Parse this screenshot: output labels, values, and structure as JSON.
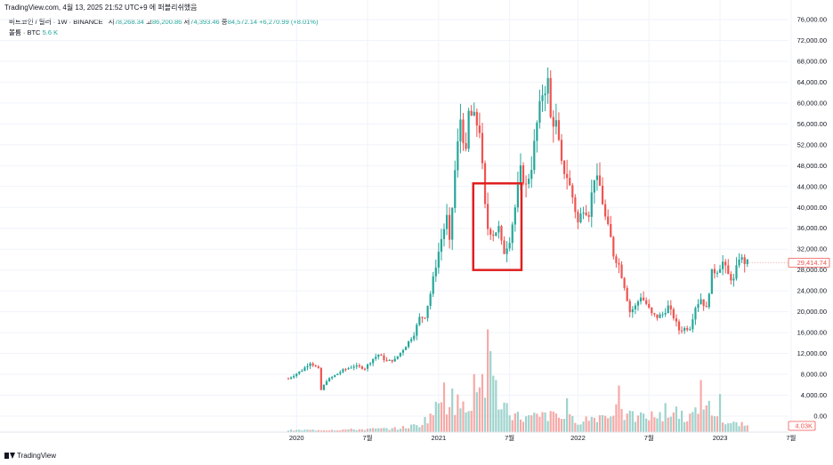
{
  "header": {
    "publish_text": "TradingView.com, 4월 13, 2025 21:52 UTC+9 에 퍼블리쉬했음"
  },
  "legend": {
    "symbol": "비트코인 / 달러 · 1W · BINANCE",
    "open_label": "시",
    "open_value": "78,268.34",
    "high_label": "고",
    "high_value": "86,200.86",
    "low_label": "저",
    "low_value": "74,393.46",
    "close_label": "종",
    "close_value": "84,572.14",
    "change": "+6,270.99 (+8.01%)",
    "volume_label": "볼륨 · BTC",
    "volume_value": "5.6 K"
  },
  "footer": {
    "brand": "TradingView"
  },
  "colors": {
    "up": "#26a69a",
    "down": "#ef5350",
    "vol_up": "#9ed3cd",
    "vol_down": "#f7a9a7",
    "highlight_box": "#e02020",
    "grid": "#f0f3fa"
  },
  "chart_data": {
    "type": "candlestick",
    "interval": "1W",
    "y_axis_ticks": [
      "76,000.00",
      "72,000.00",
      "68,000.00",
      "64,000.00",
      "60,000.00",
      "56,000.00",
      "52,000.00",
      "48,000.00",
      "44,000.00",
      "40,000.00",
      "36,000.00",
      "32,000.00",
      "28,000.00",
      "24,000.00",
      "20,000.00",
      "16,000.00",
      "12,000.00",
      "8,000.00",
      "4,000.00",
      "0.00"
    ],
    "y_axis_values": [
      76000,
      72000,
      68000,
      64000,
      60000,
      56000,
      52000,
      48000,
      44000,
      40000,
      36000,
      32000,
      28000,
      24000,
      20000,
      16000,
      12000,
      8000,
      4000,
      0
    ],
    "x_axis_labels": [
      "2020",
      "7월",
      "2021",
      "7월",
      "2022",
      "7월",
      "2023",
      "7월"
    ],
    "x_axis_weeks": [
      3,
      29,
      55,
      81,
      106,
      132,
      158,
      184
    ],
    "price_last_label": "29,414.74",
    "price_last": 29414.74,
    "volume_last_label": "4.03K",
    "price_range": [
      0,
      77000
    ],
    "weeks": 187,
    "highlight": {
      "from_week": 68,
      "to_week": 85,
      "low": 28000,
      "high": 44600
    },
    "anchors": [
      [
        0,
        7200
      ],
      [
        5,
        8800
      ],
      [
        8,
        10300
      ],
      [
        11,
        9000
      ],
      [
        12,
        5000
      ],
      [
        14,
        6800
      ],
      [
        17,
        7800
      ],
      [
        20,
        8800
      ],
      [
        24,
        9600
      ],
      [
        28,
        9200
      ],
      [
        31,
        11000
      ],
      [
        33,
        11800
      ],
      [
        36,
        10500
      ],
      [
        39,
        10800
      ],
      [
        43,
        13500
      ],
      [
        46,
        15800
      ],
      [
        48,
        18800
      ],
      [
        50,
        19200
      ],
      [
        52,
        23500
      ],
      [
        54,
        29000
      ],
      [
        56,
        34000
      ],
      [
        58,
        38000
      ],
      [
        59,
        33000
      ],
      [
        61,
        47000
      ],
      [
        63,
        57000
      ],
      [
        65,
        50000
      ],
      [
        66,
        58000
      ],
      [
        68,
        57000
      ],
      [
        70,
        55000
      ],
      [
        72,
        40000
      ],
      [
        73,
        36000
      ],
      [
        75,
        35000
      ],
      [
        77,
        36000
      ],
      [
        78,
        33000
      ],
      [
        79,
        31500
      ],
      [
        81,
        34000
      ],
      [
        83,
        40000
      ],
      [
        85,
        47000
      ],
      [
        87,
        44000
      ],
      [
        89,
        48000
      ],
      [
        91,
        56000
      ],
      [
        93,
        62000
      ],
      [
        95,
        64000
      ],
      [
        96,
        57000
      ],
      [
        98,
        56000
      ],
      [
        100,
        48000
      ],
      [
        102,
        46000
      ],
      [
        104,
        42000
      ],
      [
        106,
        37000
      ],
      [
        108,
        40000
      ],
      [
        110,
        39000
      ],
      [
        112,
        46000
      ],
      [
        114,
        44000
      ],
      [
        116,
        38000
      ],
      [
        118,
        34000
      ],
      [
        119,
        31000
      ],
      [
        121,
        29000
      ],
      [
        123,
        25000
      ],
      [
        125,
        20000
      ],
      [
        127,
        21000
      ],
      [
        129,
        23000
      ],
      [
        131,
        21500
      ],
      [
        133,
        19500
      ],
      [
        135,
        19000
      ],
      [
        137,
        19500
      ],
      [
        139,
        21000
      ],
      [
        141,
        19000
      ],
      [
        143,
        16500
      ],
      [
        145,
        16800
      ],
      [
        147,
        17000
      ],
      [
        149,
        21000
      ],
      [
        151,
        22500
      ],
      [
        153,
        20500
      ],
      [
        155,
        27500
      ],
      [
        157,
        28000
      ],
      [
        159,
        29500
      ],
      [
        161,
        27000
      ],
      [
        163,
        26000
      ],
      [
        165,
        30500
      ],
      [
        167,
        29500
      ],
      [
        168,
        29414.74
      ]
    ],
    "volume_anchors": [
      [
        0,
        300
      ],
      [
        20,
        400
      ],
      [
        40,
        600
      ],
      [
        48,
        1200
      ],
      [
        50,
        2000
      ],
      [
        52,
        2800
      ],
      [
        54,
        3800
      ],
      [
        56,
        5600
      ],
      [
        58,
        4200
      ],
      [
        60,
        4800
      ],
      [
        62,
        4600
      ],
      [
        64,
        3900
      ],
      [
        66,
        5200
      ],
      [
        68,
        5600
      ],
      [
        70,
        6800
      ],
      [
        72,
        7600
      ],
      [
        74,
        9000
      ],
      [
        76,
        6400
      ],
      [
        78,
        4600
      ],
      [
        80,
        4200
      ],
      [
        82,
        3200
      ],
      [
        84,
        2600
      ],
      [
        86,
        2400
      ],
      [
        88,
        2300
      ],
      [
        90,
        2500
      ],
      [
        92,
        2400
      ],
      [
        94,
        2800
      ],
      [
        96,
        2600
      ],
      [
        98,
        2800
      ],
      [
        100,
        2200
      ],
      [
        102,
        2300
      ],
      [
        104,
        2100
      ],
      [
        106,
        2000
      ],
      [
        108,
        2100
      ],
      [
        110,
        2200
      ],
      [
        112,
        2400
      ],
      [
        114,
        2800
      ],
      [
        116,
        2600
      ],
      [
        118,
        3200
      ],
      [
        120,
        4400
      ],
      [
        122,
        2800
      ],
      [
        124,
        2600
      ],
      [
        126,
        2500
      ],
      [
        128,
        2400
      ],
      [
        130,
        2600
      ],
      [
        132,
        2500
      ],
      [
        134,
        2800
      ],
      [
        136,
        2500
      ],
      [
        138,
        3400
      ],
      [
        140,
        2600
      ],
      [
        142,
        3800
      ],
      [
        144,
        2800
      ],
      [
        146,
        2500
      ],
      [
        148,
        2800
      ],
      [
        150,
        3200
      ],
      [
        152,
        2800
      ],
      [
        154,
        4200
      ],
      [
        156,
        2800
      ],
      [
        158,
        2000
      ],
      [
        160,
        1600
      ],
      [
        162,
        1400
      ],
      [
        164,
        1300
      ],
      [
        166,
        1200
      ],
      [
        168,
        1000
      ]
    ],
    "volume_spikes": [
      [
        73,
        17000
      ],
      [
        74,
        13400
      ],
      [
        68,
        9600
      ],
      [
        57,
        8200
      ],
      [
        60,
        7200
      ],
      [
        76,
        8600
      ],
      [
        70,
        7400
      ],
      [
        121,
        7700
      ],
      [
        151,
        8600
      ],
      [
        158,
        6300
      ],
      [
        102,
        5600
      ],
      [
        120,
        4600
      ],
      [
        138,
        4800
      ]
    ]
  }
}
